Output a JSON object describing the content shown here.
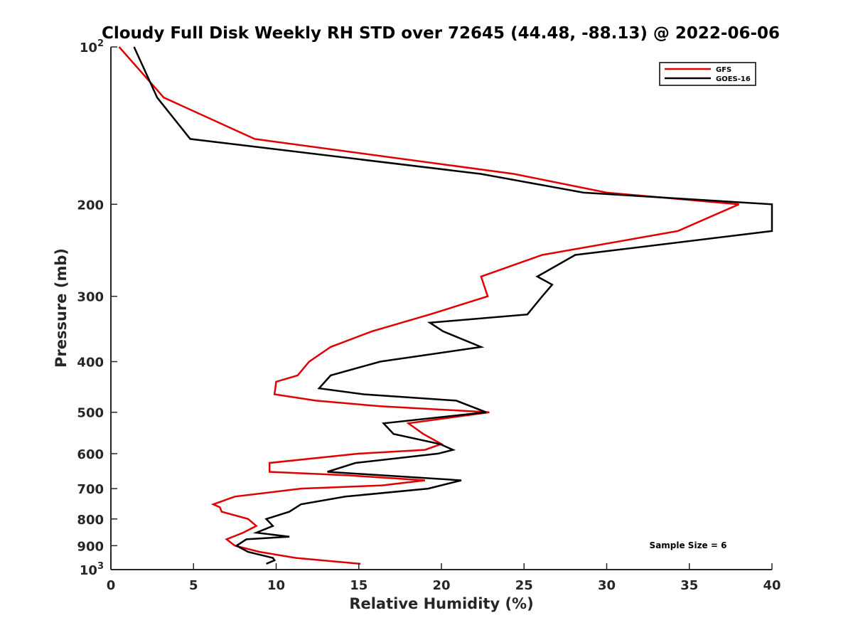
{
  "chart_data": {
    "type": "line",
    "title": "Cloudy Full Disk Weekly RH STD over 72645 (44.48, -88.13) @ 2022-06-06",
    "xlabel": "Relative Humidity (%)",
    "ylabel": "Pressure (mb)",
    "xlim": [
      0,
      40
    ],
    "ylim": [
      100,
      1000
    ],
    "y_scale": "log",
    "y_reversed": true,
    "grid": false,
    "legend_position": "top-right",
    "x_ticks": [
      "0",
      "5",
      "10",
      "15",
      "20",
      "25",
      "30",
      "35",
      "40"
    ],
    "x_tick_values": [
      0,
      5,
      10,
      15,
      20,
      25,
      30,
      35,
      40
    ],
    "y_ticks": [
      {
        "value": 100,
        "base": "10",
        "exp": "2"
      },
      {
        "value": 200,
        "base": "200",
        "exp": ""
      },
      {
        "value": 300,
        "base": "300",
        "exp": ""
      },
      {
        "value": 400,
        "base": "400",
        "exp": ""
      },
      {
        "value": 500,
        "base": "500",
        "exp": ""
      },
      {
        "value": 600,
        "base": "600",
        "exp": ""
      },
      {
        "value": 700,
        "base": "700",
        "exp": ""
      },
      {
        "value": 800,
        "base": "800",
        "exp": ""
      },
      {
        "value": 900,
        "base": "900",
        "exp": ""
      },
      {
        "value": 1000,
        "base": "10",
        "exp": "3"
      }
    ],
    "annotation": "Sample Size = 6",
    "series": [
      {
        "name": "GFS",
        "color": "#e00000",
        "points": [
          [
            0.5,
            100
          ],
          [
            3.2,
            125
          ],
          [
            8.7,
            150
          ],
          [
            24.4,
            175
          ],
          [
            30.0,
            190
          ],
          [
            38.0,
            200
          ],
          [
            34.3,
            225
          ],
          [
            26.1,
            250
          ],
          [
            22.4,
            275
          ],
          [
            22.8,
            300
          ],
          [
            19.3,
            325
          ],
          [
            15.8,
            350
          ],
          [
            13.3,
            375
          ],
          [
            12.0,
            400
          ],
          [
            11.3,
            425
          ],
          [
            10.0,
            437
          ],
          [
            9.9,
            462
          ],
          [
            12.4,
            475
          ],
          [
            16.3,
            487
          ],
          [
            22.9,
            500
          ],
          [
            18.0,
            525
          ],
          [
            18.9,
            550
          ],
          [
            20.0,
            575
          ],
          [
            19.0,
            590
          ],
          [
            15.0,
            600
          ],
          [
            9.6,
            625
          ],
          [
            9.6,
            650
          ],
          [
            14.3,
            660
          ],
          [
            19.0,
            675
          ],
          [
            16.4,
            690
          ],
          [
            11.5,
            700
          ],
          [
            7.5,
            725
          ],
          [
            6.2,
            750
          ],
          [
            6.6,
            760
          ],
          [
            6.7,
            775
          ],
          [
            8.3,
            800
          ],
          [
            8.8,
            825
          ],
          [
            8.0,
            850
          ],
          [
            7.0,
            875
          ],
          [
            7.5,
            900
          ],
          [
            9.0,
            925
          ],
          [
            11.2,
            950
          ],
          [
            15.1,
            975
          ]
        ]
      },
      {
        "name": "GOES-16",
        "color": "#000000",
        "points": [
          [
            1.4,
            100
          ],
          [
            2.8,
            125
          ],
          [
            4.8,
            150
          ],
          [
            22.4,
            175
          ],
          [
            28.6,
            190
          ],
          [
            40.0,
            200
          ],
          [
            40.0,
            225
          ],
          [
            28.1,
            250
          ],
          [
            25.8,
            275
          ],
          [
            26.7,
            285
          ],
          [
            26.1,
            300
          ],
          [
            25.2,
            325
          ],
          [
            19.3,
            337
          ],
          [
            20.1,
            350
          ],
          [
            22.4,
            375
          ],
          [
            16.3,
            400
          ],
          [
            13.3,
            425
          ],
          [
            12.6,
            450
          ],
          [
            15.3,
            462
          ],
          [
            20.9,
            475
          ],
          [
            22.7,
            500
          ],
          [
            16.5,
            525
          ],
          [
            17.1,
            550
          ],
          [
            19.9,
            575
          ],
          [
            20.7,
            590
          ],
          [
            19.8,
            600
          ],
          [
            14.8,
            625
          ],
          [
            13.1,
            650
          ],
          [
            21.2,
            675
          ],
          [
            19.2,
            700
          ],
          [
            14.2,
            725
          ],
          [
            11.5,
            750
          ],
          [
            10.8,
            775
          ],
          [
            9.4,
            800
          ],
          [
            9.8,
            825
          ],
          [
            8.8,
            850
          ],
          [
            10.8,
            865
          ],
          [
            8.2,
            875
          ],
          [
            7.6,
            900
          ],
          [
            8.3,
            925
          ],
          [
            9.8,
            950
          ],
          [
            9.9,
            960
          ],
          [
            9.4,
            975
          ]
        ]
      }
    ]
  }
}
